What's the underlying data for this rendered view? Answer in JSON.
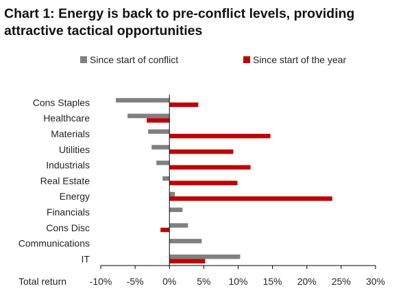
{
  "title": "Chart 1: Energy is back to pre-conflict levels, providing attractive tactical opportunities",
  "colors": {
    "series_conflict": "#808080",
    "series_ytd": "#c00000",
    "axis": "#000000"
  },
  "chart_data": {
    "type": "bar",
    "orientation": "horizontal",
    "categories": [
      "Cons Staples",
      "Healthcare",
      "Materials",
      "Utilities",
      "Industrials",
      "Real Estate",
      "Energy",
      "Financials",
      "Cons Disc",
      "Communications",
      "IT"
    ],
    "series": [
      {
        "name": "Since start of conflict",
        "values": [
          -7.8,
          -6.1,
          -3.1,
          -2.6,
          -1.9,
          -1.0,
          0.8,
          1.9,
          2.7,
          4.7,
          10.3
        ]
      },
      {
        "name": "Since start of the year",
        "values": [
          4.2,
          -3.3,
          14.7,
          9.3,
          11.8,
          9.9,
          23.7,
          0,
          -1.3,
          0,
          5.2
        ]
      }
    ],
    "xlabel": "Total return",
    "xlim": [
      -10,
      30
    ],
    "xticks": [
      -10,
      -5,
      0,
      5,
      10,
      15,
      20,
      25,
      30
    ],
    "xtick_labels": [
      "-10%",
      "-5%",
      "0%",
      "5%",
      "10%",
      "15%",
      "20%",
      "25%",
      "30%"
    ],
    "grid": false,
    "legend_position": "top"
  }
}
